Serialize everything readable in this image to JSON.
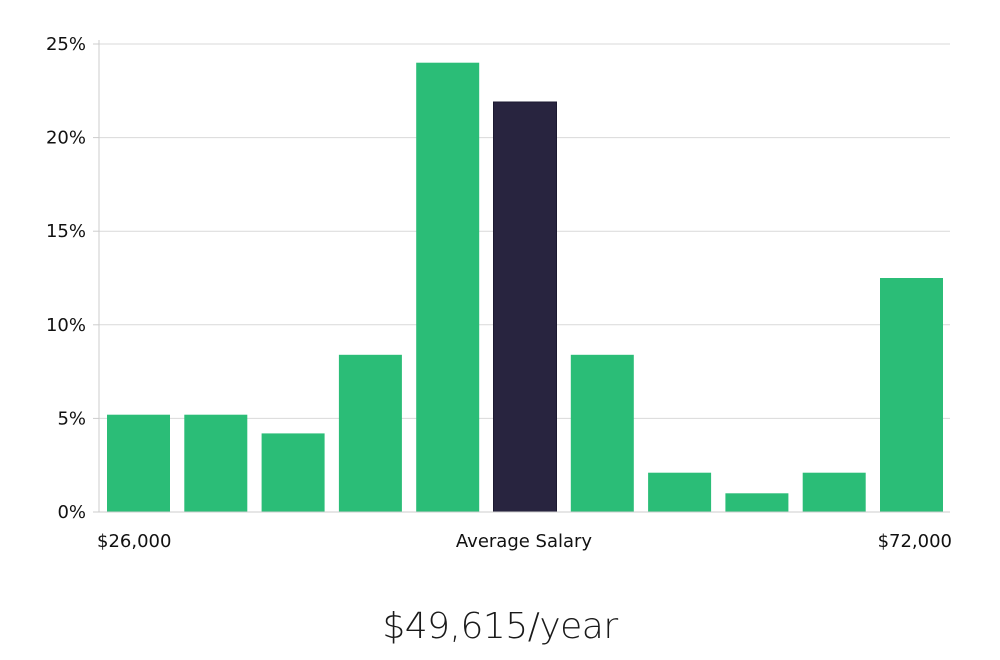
{
  "chart_data": {
    "type": "bar",
    "title": "",
    "xlabel": "",
    "ylabel": "",
    "x_labels": {
      "left": "$26,000",
      "center": "Average Salary",
      "right": "$72,000"
    },
    "y_ticks": [
      0,
      5,
      10,
      15,
      20,
      25
    ],
    "y_tick_labels": [
      "0%",
      "5%",
      "10%",
      "15%",
      "20%",
      "25%"
    ],
    "ylim": [
      0,
      25
    ],
    "grid": true,
    "values": [
      5.2,
      5.2,
      4.2,
      8.4,
      24.0,
      21.9,
      8.4,
      2.1,
      1.0,
      2.1,
      12.5
    ],
    "highlight_index": 5,
    "colors": {
      "bar": "#2bbd77",
      "highlight": "#28243f",
      "grid": "#d9d9d9"
    }
  },
  "summary": {
    "average_salary": "$49,615/year"
  }
}
